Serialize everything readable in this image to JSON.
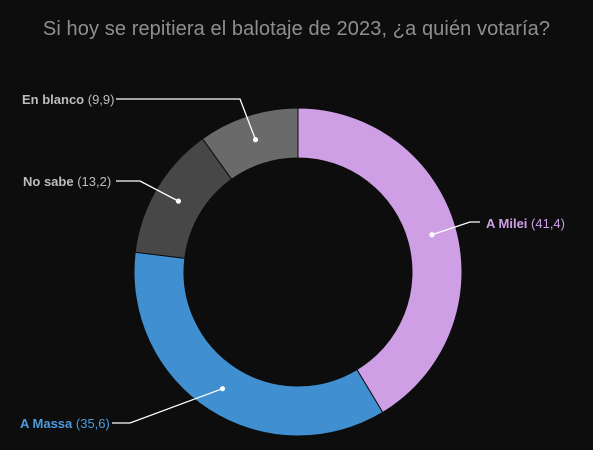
{
  "chart_data": {
    "type": "pie",
    "title": "Si hoy se repitiera el balotaje de 2023, ¿a quién votaría?",
    "slices": [
      {
        "label": "A Milei",
        "value_text": "(41,4)",
        "value": 41.4,
        "color": "#cf9fe6",
        "label_color": "#cf9fe6"
      },
      {
        "label": "A Massa",
        "value_text": "(35,6)",
        "value": 35.6,
        "color": "#3f8fd1",
        "label_color": "#4a9be0"
      },
      {
        "label": "No sabe",
        "value_text": "(13,2)",
        "value": 13.2,
        "color": "#474747",
        "label_color": "#bdbdbd"
      },
      {
        "label": "En blanco",
        "value_text": "(9,9)",
        "value": 9.9,
        "color": "#6a6a6a",
        "label_color": "#bdbdbd"
      }
    ],
    "start_angle": 0,
    "direction": "clockwise",
    "donut": true,
    "legend": "none"
  }
}
